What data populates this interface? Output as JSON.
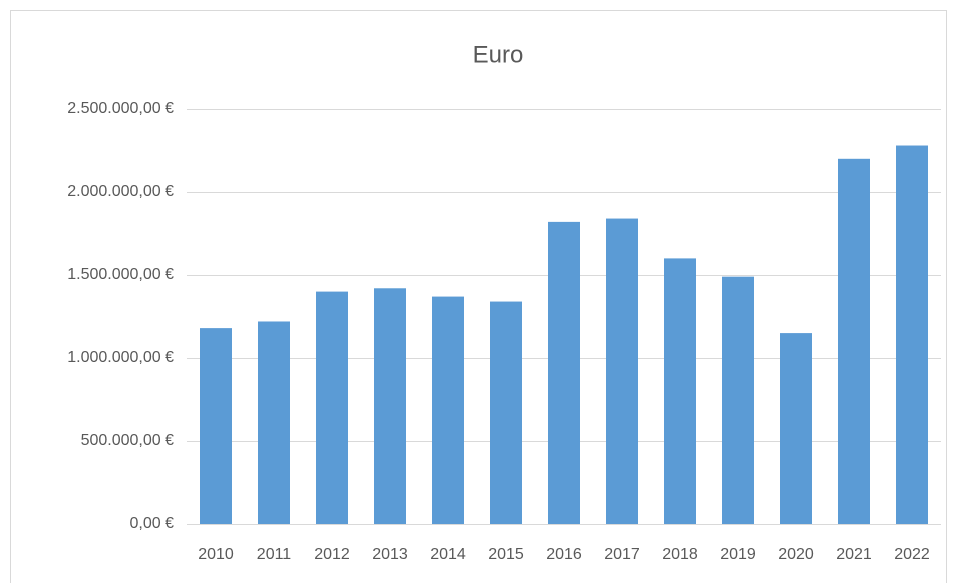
{
  "chart_data": {
    "type": "bar",
    "title": "Euro",
    "categories": [
      "2010",
      "2011",
      "2012",
      "2013",
      "2014",
      "2015",
      "2016",
      "2017",
      "2018",
      "2019",
      "2020",
      "2021",
      "2022"
    ],
    "values": [
      1180000,
      1220000,
      1400000,
      1420000,
      1370000,
      1340000,
      1820000,
      1840000,
      1600000,
      1490000,
      1150000,
      2200000,
      2280000
    ],
    "color": "#5b9bd5",
    "ylim": [
      0,
      2500000
    ],
    "yticks": [
      {
        "value": 0,
        "label": "0,00 €"
      },
      {
        "value": 500000,
        "label": "500.000,00 €"
      },
      {
        "value": 1000000,
        "label": "1.000.000,00 €"
      },
      {
        "value": 1500000,
        "label": "1.500.000,00 €"
      },
      {
        "value": 2000000,
        "label": "2.000.000,00 €"
      },
      {
        "value": 2500000,
        "label": "2.500.000,00 €"
      }
    ],
    "grid": true
  }
}
